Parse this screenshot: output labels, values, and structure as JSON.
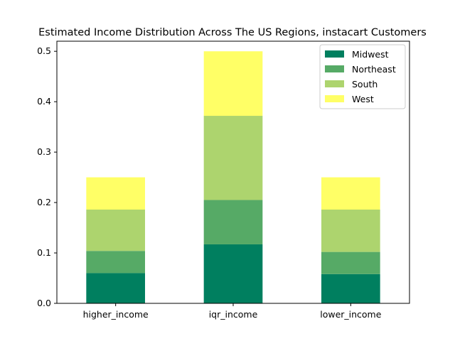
{
  "chart_data": {
    "type": "bar",
    "stacked": true,
    "title": "Estimated Income Distribution Across The US Regions, instacart Customers",
    "xlabel": "",
    "ylabel": "",
    "categories": [
      "higher_income",
      "iqr_income",
      "lower_income"
    ],
    "ylim": [
      0,
      0.52
    ],
    "yticks": [
      "0.0",
      "0.1",
      "0.2",
      "0.3",
      "0.4",
      "0.5"
    ],
    "legend_position": "top-right",
    "series": [
      {
        "name": "Midwest",
        "color": "#007f5f",
        "values": [
          0.06,
          0.117,
          0.058
        ]
      },
      {
        "name": "Northeast",
        "color": "#56aa66",
        "values": [
          0.044,
          0.088,
          0.044
        ]
      },
      {
        "name": "South",
        "color": "#add46e",
        "values": [
          0.082,
          0.167,
          0.084
        ]
      },
      {
        "name": "West",
        "color": "#ffff66",
        "values": [
          0.064,
          0.128,
          0.064
        ]
      }
    ]
  }
}
